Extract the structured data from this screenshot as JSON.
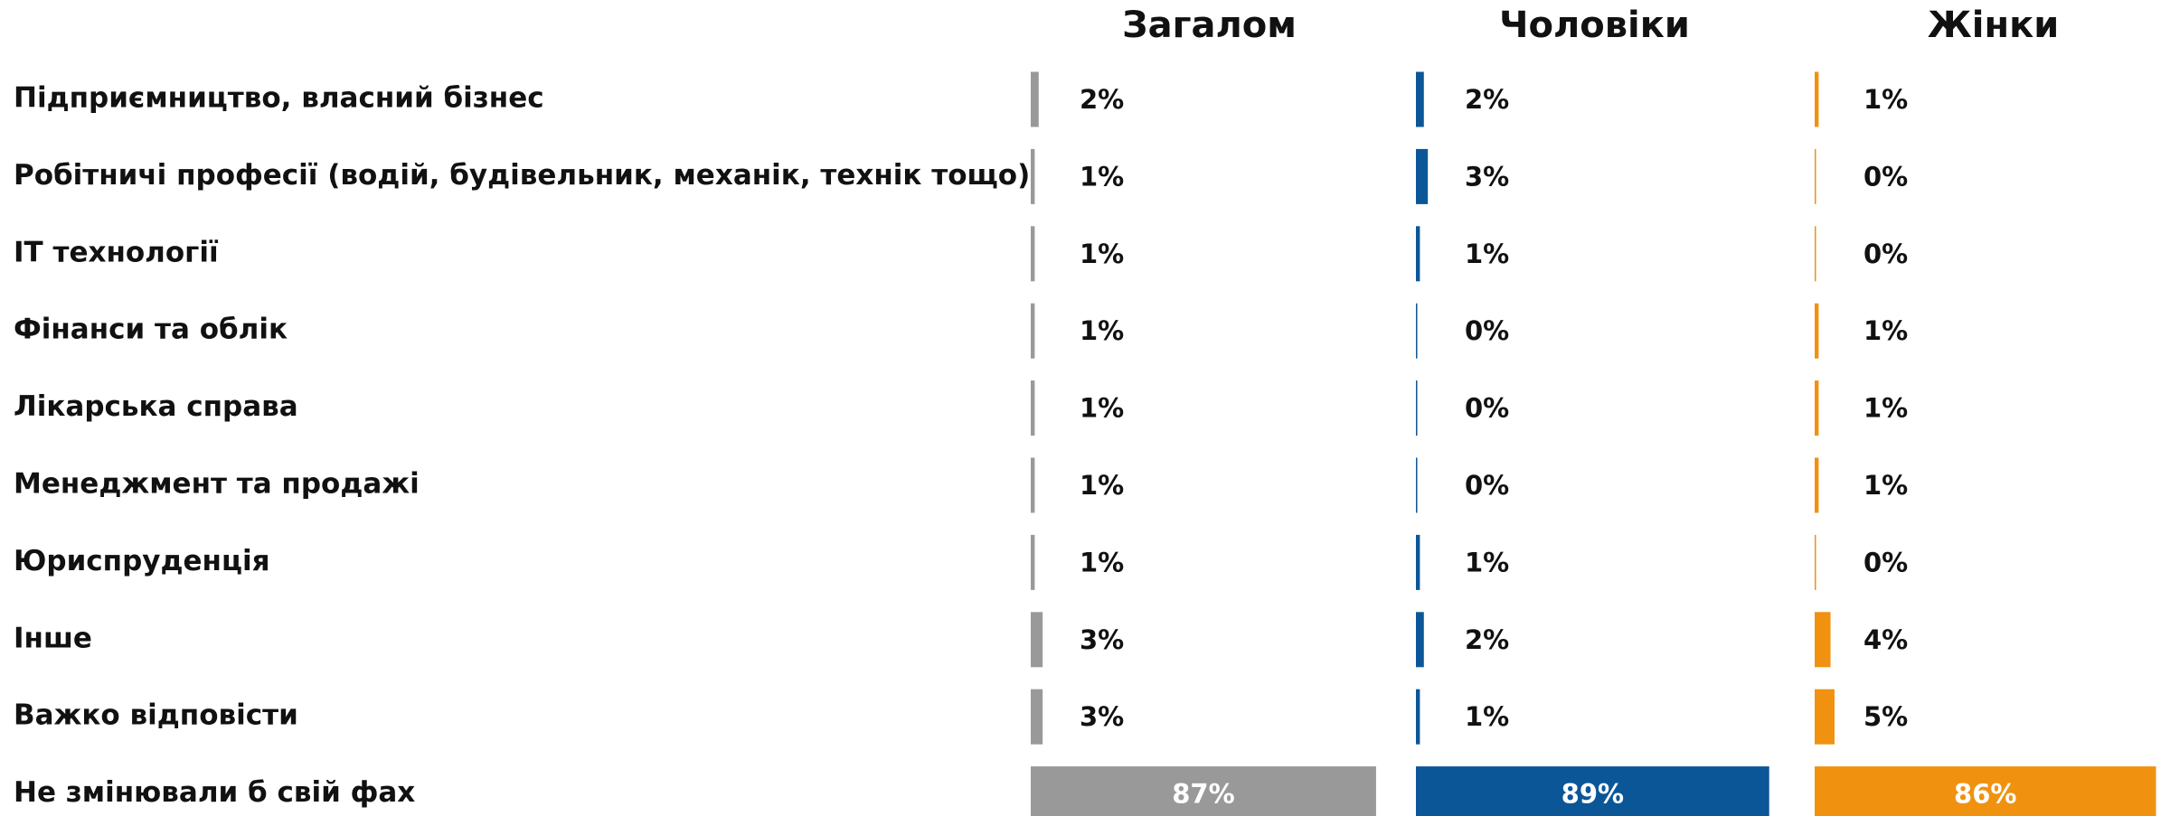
{
  "chart_data": {
    "type": "bar",
    "orientation": "horizontal",
    "categories": [
      "Підприємництво, власний бізнес",
      "Робітничі професії (водій, будівельник, механік, технік тощо)",
      "ІТ технології",
      "Фінанси та облік",
      "Лікарська справа",
      "Менеджмент та продажі",
      "Юриспруденція",
      "Інше",
      "Важко відповісти",
      "Не змінювали б свій фах"
    ],
    "xlim": [
      0,
      100
    ],
    "series": [
      {
        "name": "Загалом",
        "color": "#999999",
        "values": [
          2,
          1,
          1,
          1,
          1,
          1,
          1,
          3,
          3,
          87
        ],
        "value_labels": [
          "2%",
          "1%",
          "1%",
          "1%",
          "1%",
          "1%",
          "1%",
          "3%",
          "3%",
          "87%"
        ]
      },
      {
        "name": "Чоловіки",
        "color": "#0b5697",
        "values": [
          2,
          3,
          1,
          0,
          0,
          0,
          1,
          2,
          1,
          89
        ],
        "value_labels": [
          "2%",
          "3%",
          "1%",
          "0%",
          "0%",
          "0%",
          "1%",
          "2%",
          "1%",
          "89%"
        ]
      },
      {
        "name": "Жінки",
        "color": "#f0920f",
        "values": [
          1,
          0,
          0,
          1,
          1,
          1,
          0,
          4,
          5,
          86
        ],
        "value_labels": [
          "1%",
          "0%",
          "0%",
          "1%",
          "1%",
          "1%",
          "0%",
          "4%",
          "5%",
          "86%"
        ]
      }
    ]
  }
}
